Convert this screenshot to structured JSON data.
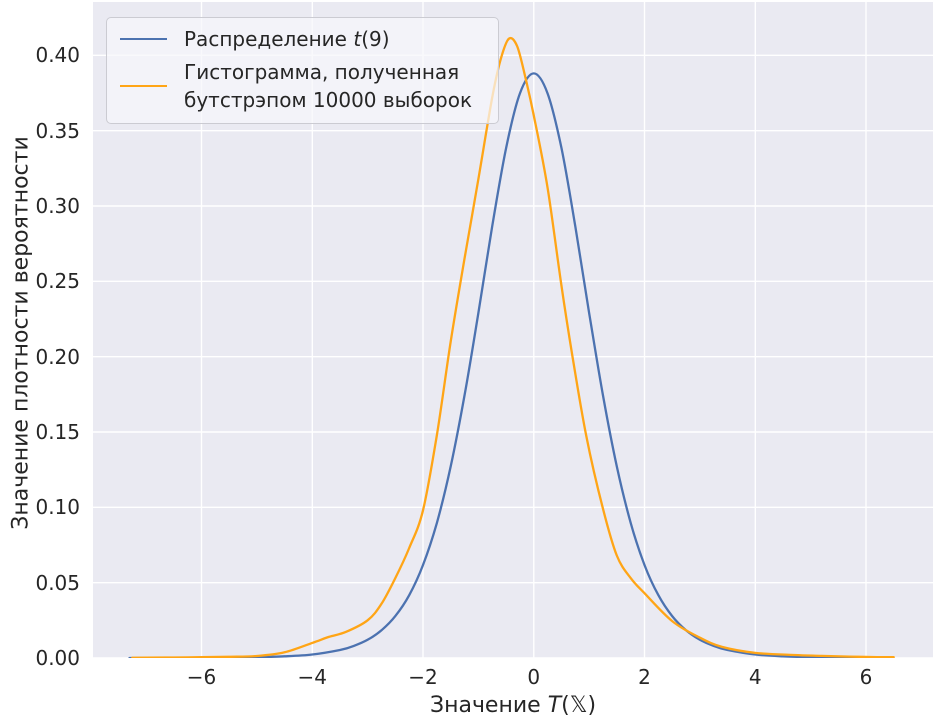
{
  "figure": {
    "background": "#ffffff",
    "plot_background": "#eaeaf2",
    "grid_color": "#ffffff",
    "text_color": "#262626"
  },
  "axes": {
    "xlabel_prefix": "Значение ",
    "xlabel_var": "T",
    "xlabel_suffix": "(𝕏)",
    "ylabel": "Значение плотности вероятности"
  },
  "legend": {
    "items": [
      {
        "label_prefix": "Распределение ",
        "label_italic": "t",
        "label_suffix": "(9)",
        "color": "#4c72b0"
      },
      {
        "label_line1": "Гистограмма, полученная",
        "label_line2": "бутстрэпом 10000 выборок",
        "color": "#ffa516"
      }
    ]
  },
  "chart_data": {
    "type": "line",
    "title": "",
    "xlabel": "Значение T(𝕏)",
    "ylabel": "Значение плотности вероятности",
    "xlim": [
      -7.96,
      7.21
    ],
    "ylim": [
      0,
      0.4354
    ],
    "xticks": [
      -6,
      -4,
      -2,
      0,
      2,
      4,
      6
    ],
    "xtick_labels": [
      "−6",
      "−4",
      "−2",
      "0",
      "2",
      "4",
      "6"
    ],
    "yticks": [
      0.0,
      0.05,
      0.1,
      0.15,
      0.2,
      0.25,
      0.3,
      0.35,
      0.4
    ],
    "ytick_labels": [
      "0.00",
      "0.05",
      "0.10",
      "0.15",
      "0.20",
      "0.25",
      "0.30",
      "0.35",
      "0.40"
    ],
    "grid": true,
    "legend_position": "upper left",
    "series": [
      {
        "name": "Распределение t(9)",
        "color": "#4c72b0",
        "peak": {
          "x": 0.0,
          "y": 0.388
        },
        "points": [
          [
            -7.3,
            3e-05
          ],
          [
            -7.0,
            4e-05
          ],
          [
            -6.5,
            7e-05
          ],
          [
            -6.0,
            0.00012
          ],
          [
            -5.5,
            0.00025
          ],
          [
            -5.0,
            0.0005
          ],
          [
            -4.5,
            0.0011
          ],
          [
            -4.0,
            0.0023
          ],
          [
            -3.5,
            0.0053
          ],
          [
            -3.25,
            0.008
          ],
          [
            -3.0,
            0.0121
          ],
          [
            -2.75,
            0.0184
          ],
          [
            -2.5,
            0.0278
          ],
          [
            -2.25,
            0.0417
          ],
          [
            -2.0,
            0.0617
          ],
          [
            -1.75,
            0.0897
          ],
          [
            -1.5,
            0.1272
          ],
          [
            -1.25,
            0.1742
          ],
          [
            -1.0,
            0.2291
          ],
          [
            -0.75,
            0.2865
          ],
          [
            -0.5,
            0.3384
          ],
          [
            -0.25,
            0.3747
          ],
          [
            0.0,
            0.388
          ],
          [
            0.25,
            0.3747
          ],
          [
            0.5,
            0.3384
          ],
          [
            0.75,
            0.2865
          ],
          [
            1.0,
            0.2291
          ],
          [
            1.25,
            0.1742
          ],
          [
            1.5,
            0.1272
          ],
          [
            1.75,
            0.0897
          ],
          [
            2.0,
            0.0617
          ],
          [
            2.25,
            0.0417
          ],
          [
            2.5,
            0.0278
          ],
          [
            2.75,
            0.0184
          ],
          [
            3.0,
            0.0121
          ],
          [
            3.25,
            0.008
          ],
          [
            3.5,
            0.0053
          ],
          [
            4.0,
            0.0023
          ],
          [
            4.5,
            0.0011
          ],
          [
            5.0,
            0.0005
          ],
          [
            5.5,
            0.00025
          ],
          [
            6.0,
            0.00012
          ],
          [
            6.3,
            8e-05
          ]
        ]
      },
      {
        "name": "Гистограмма, полученная бутстрэпом 10000 выборок",
        "color": "#ffa516",
        "peak": {
          "x": -0.45,
          "y": 0.411
        },
        "points": [
          [
            -7.25,
            0.0001
          ],
          [
            -7.0,
            0.0002
          ],
          [
            -6.5,
            0.0003
          ],
          [
            -6.0,
            0.0005
          ],
          [
            -5.5,
            0.0008
          ],
          [
            -5.0,
            0.0013
          ],
          [
            -4.5,
            0.0038
          ],
          [
            -4.0,
            0.01
          ],
          [
            -3.7,
            0.014
          ],
          [
            -3.4,
            0.0172
          ],
          [
            -3.0,
            0.025
          ],
          [
            -2.75,
            0.036
          ],
          [
            -2.5,
            0.053
          ],
          [
            -2.25,
            0.073
          ],
          [
            -2.0,
            0.098
          ],
          [
            -1.75,
            0.148
          ],
          [
            -1.5,
            0.21
          ],
          [
            -1.25,
            0.265
          ],
          [
            -1.0,
            0.318
          ],
          [
            -0.75,
            0.372
          ],
          [
            -0.6,
            0.397
          ],
          [
            -0.45,
            0.411
          ],
          [
            -0.3,
            0.406
          ],
          [
            -0.15,
            0.385
          ],
          [
            0.0,
            0.36
          ],
          [
            0.25,
            0.312
          ],
          [
            0.5,
            0.247
          ],
          [
            0.7,
            0.2
          ],
          [
            0.95,
            0.147
          ],
          [
            1.25,
            0.099
          ],
          [
            1.5,
            0.068
          ],
          [
            1.75,
            0.053
          ],
          [
            2.0,
            0.043
          ],
          [
            2.5,
            0.0245
          ],
          [
            3.0,
            0.0135
          ],
          [
            3.4,
            0.0074
          ],
          [
            4.0,
            0.0034
          ],
          [
            4.7,
            0.002
          ],
          [
            5.2,
            0.0014
          ],
          [
            5.7,
            0.0009
          ],
          [
            6.2,
            0.0006
          ],
          [
            6.5,
            0.0005
          ]
        ]
      }
    ]
  }
}
